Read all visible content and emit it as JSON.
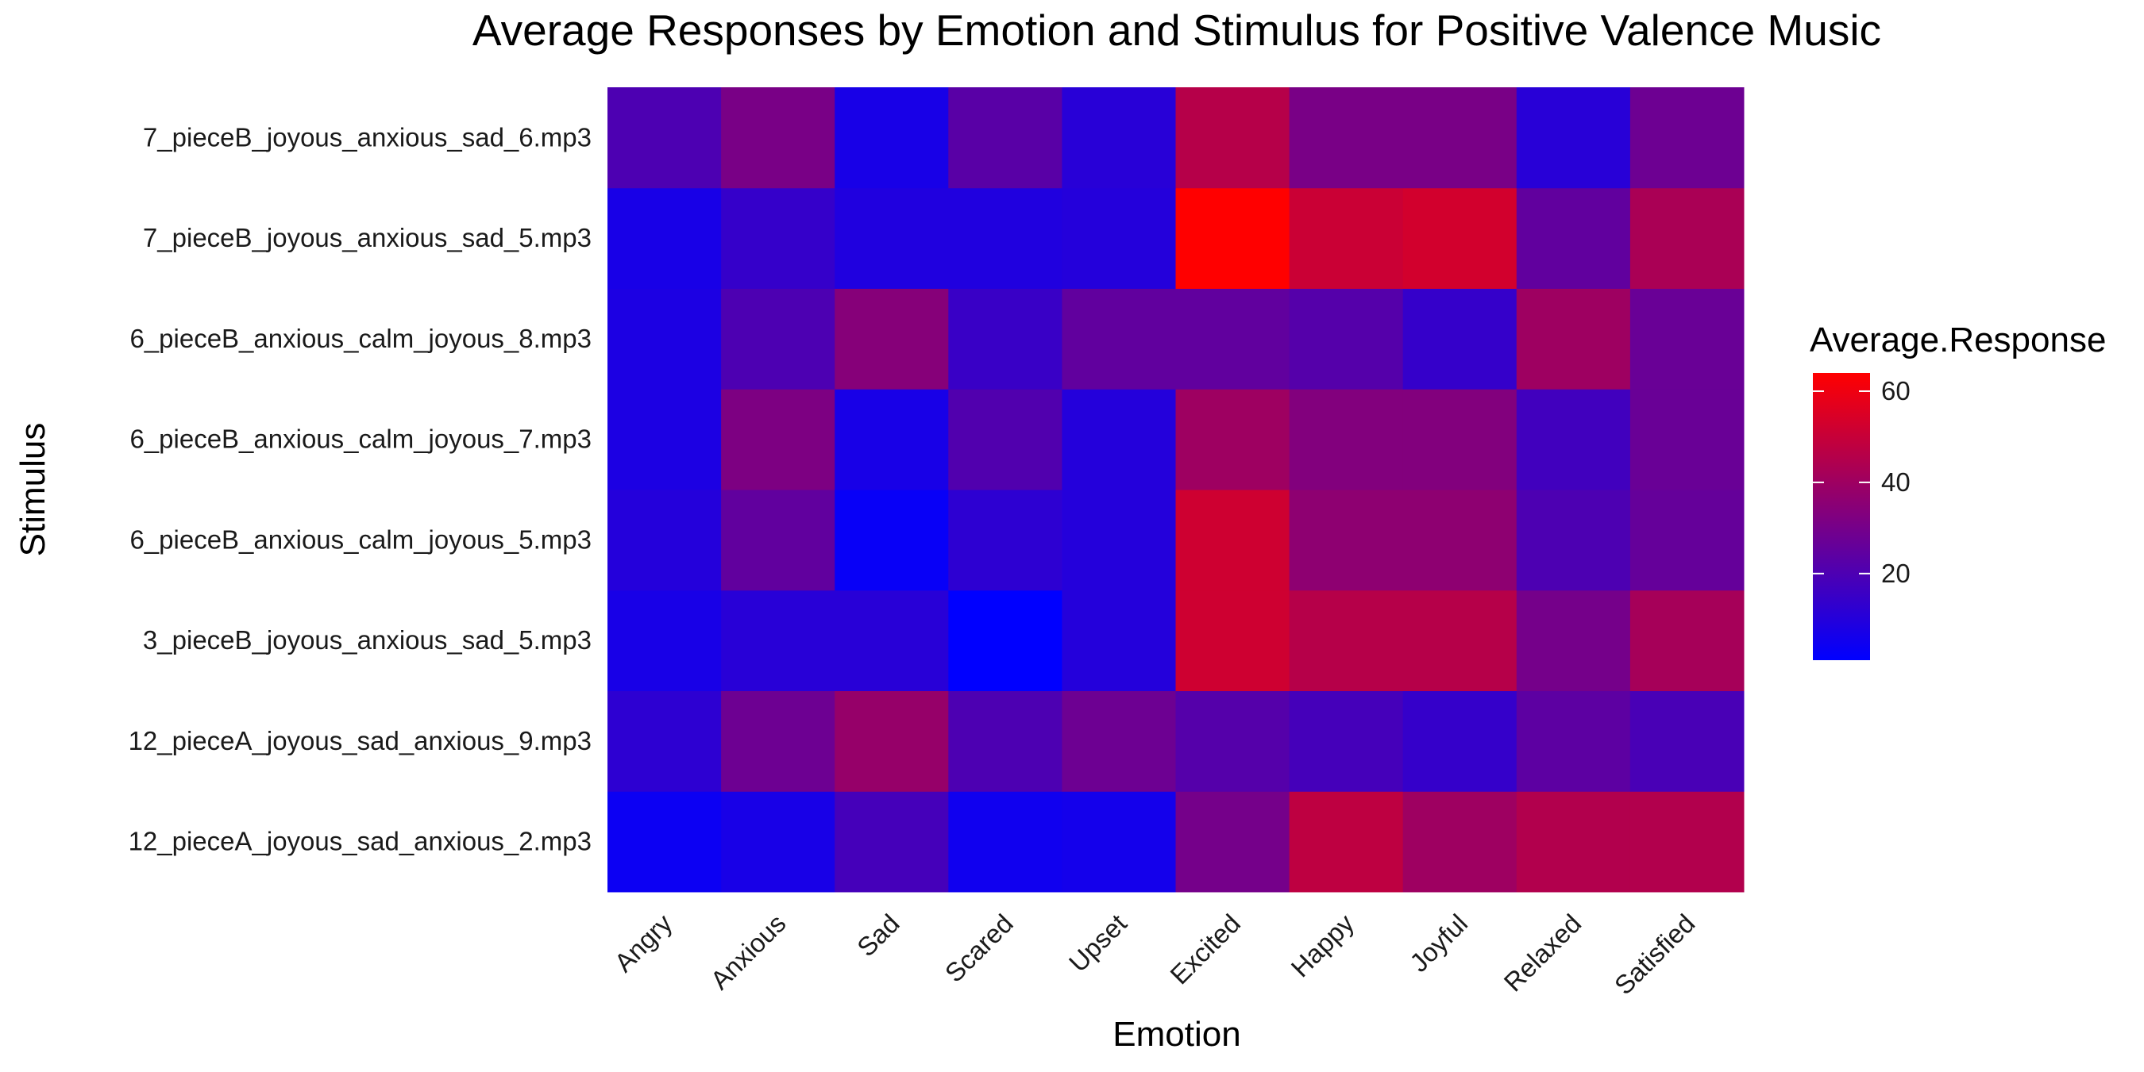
{
  "chart_data": {
    "type": "heatmap",
    "title": "Average Responses by Emotion and Stimulus for Positive Valence Music",
    "xlabel": "Emotion",
    "ylabel": "Stimulus",
    "x_categories": [
      "Angry",
      "Anxious",
      "Sad",
      "Scared",
      "Upset",
      "Excited",
      "Happy",
      "Joyful",
      "Relaxed",
      "Satisfied"
    ],
    "y_categories": [
      "12_pieceA_joyous_sad_anxious_2.mp3",
      "12_pieceA_joyous_sad_anxious_9.mp3",
      "3_pieceB_joyous_anxious_sad_5.mp3",
      "6_pieceB_anxious_calm_joyous_5.mp3",
      "6_pieceB_anxious_calm_joyous_7.mp3",
      "6_pieceB_anxious_calm_joyous_8.mp3",
      "7_pieceB_joyous_anxious_sad_5.mp3",
      "7_pieceB_joyous_anxious_sad_6.mp3"
    ],
    "values": [
      [
        4,
        7,
        18,
        5,
        6,
        30,
        48,
        40,
        45,
        45
      ],
      [
        12,
        28,
        38,
        20,
        28,
        22,
        18,
        14,
        24,
        19
      ],
      [
        7,
        11,
        11,
        1,
        10,
        52,
        46,
        46,
        30,
        42
      ],
      [
        10,
        25,
        3,
        12,
        10,
        52,
        36,
        36,
        20,
        26
      ],
      [
        8,
        32,
        7,
        21,
        10,
        40,
        33,
        33,
        17,
        27
      ],
      [
        8,
        20,
        34,
        15,
        25,
        25,
        22,
        14,
        40,
        27
      ],
      [
        7,
        14,
        9,
        9,
        10,
        64,
        51,
        53,
        25,
        43
      ],
      [
        20,
        31,
        7,
        23,
        11,
        46,
        31,
        31,
        11,
        28
      ]
    ],
    "legend": {
      "title": "Average.Response",
      "min": 1,
      "max": 64,
      "ticks": [
        20,
        40,
        60
      ],
      "low_color": "#0000ff",
      "high_color": "#ff0000",
      "position": "right"
    },
    "grid": true
  }
}
